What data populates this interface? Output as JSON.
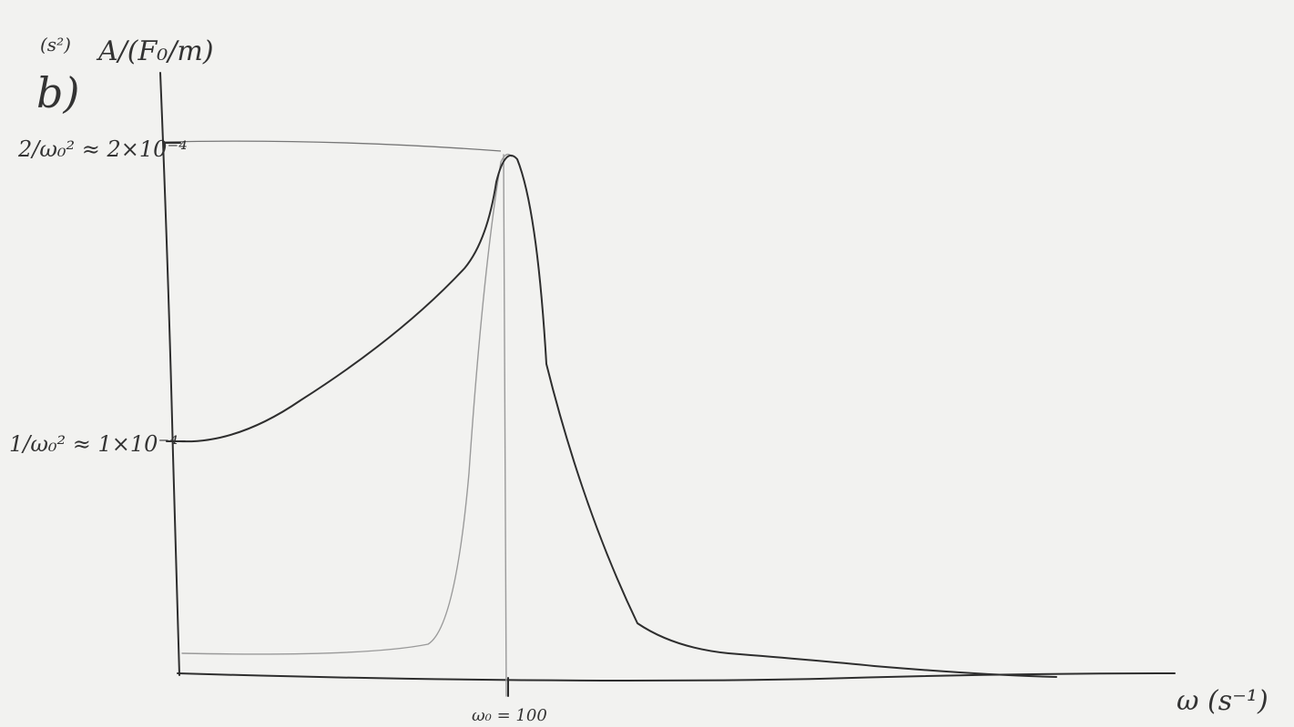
{
  "sketch": {
    "part_label": "b)",
    "y_axis_unit": "(s²)",
    "y_axis_label": "A/(F₀/m)",
    "y_labels": [
      "2/ω₀² ≈ 2×10⁻⁴",
      "1/ω₀² ≈ 1×10⁻⁴"
    ],
    "x_label_mark": "ω₀ = 100",
    "x_axis_label": "ω (s⁻¹)"
  }
}
